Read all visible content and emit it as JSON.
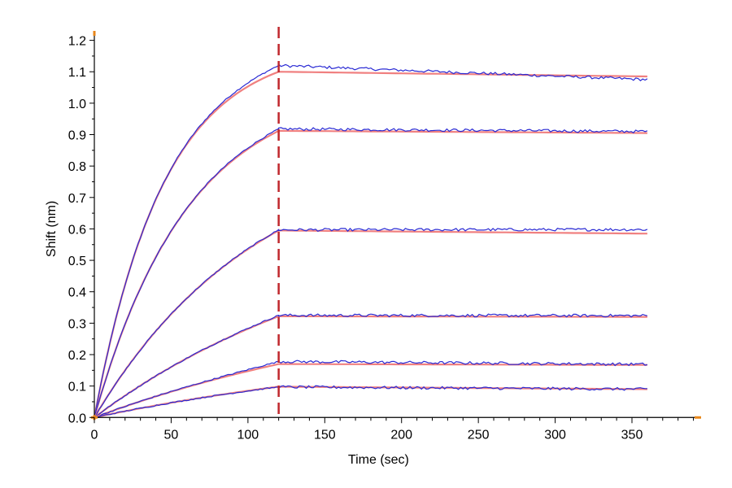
{
  "chart_data": {
    "type": "line",
    "title": "",
    "xlabel": "Time (sec)",
    "ylabel": "Shift (nm)",
    "xlim": [
      0,
      395
    ],
    "ylim": [
      -0.02,
      1.23
    ],
    "xticks": [
      0,
      50,
      100,
      150,
      200,
      250,
      300,
      350
    ],
    "yticks": [
      0.0,
      0.1,
      0.2,
      0.3,
      0.4,
      0.5,
      0.6,
      0.7,
      0.8,
      0.9,
      1.0,
      1.1,
      1.2
    ],
    "ytick_labels": [
      "0.0",
      "0.1",
      "0.2",
      "0.3",
      "0.4",
      "0.5",
      "0.6",
      "0.7",
      "0.8",
      "0.9",
      "1.0",
      "1.1",
      "1.2"
    ],
    "grid": false,
    "legend": "none",
    "association_end": 120,
    "x_end": 360,
    "marker_line": {
      "x": 120,
      "style": "dashed",
      "color": "#c0282d"
    },
    "colors": {
      "measured": "#2a2ad4",
      "fit": "#f08080",
      "axis": "#000000",
      "axis_end_marker": "#e8861a"
    },
    "series": [
      {
        "plateau": 1.1,
        "end": 1.085,
        "measured_peak": 1.12,
        "measured_end": 1.075
      },
      {
        "plateau": 0.912,
        "end": 0.905,
        "measured_peak": 0.918,
        "measured_end": 0.91
      },
      {
        "plateau": 0.595,
        "end": 0.585,
        "measured_peak": 0.597,
        "measured_end": 0.598
      },
      {
        "plateau": 0.322,
        "end": 0.32,
        "measured_peak": 0.325,
        "measured_end": 0.324
      },
      {
        "plateau": 0.17,
        "end": 0.167,
        "measured_peak": 0.178,
        "measured_end": 0.169
      },
      {
        "plateau": 0.098,
        "end": 0.09,
        "measured_peak": 0.097,
        "measured_end": 0.09
      }
    ]
  }
}
